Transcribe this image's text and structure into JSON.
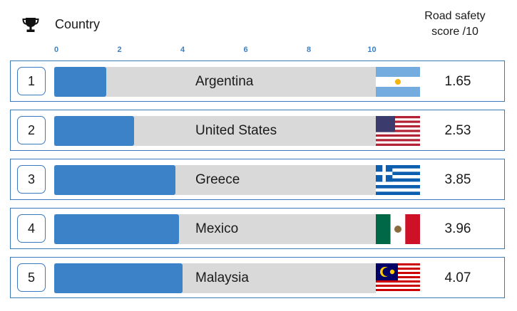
{
  "header": {
    "country_label": "Country",
    "score_label_line1": "Road safety",
    "score_label_line2": "score /10",
    "trophy_icon": "trophy-icon"
  },
  "colors": {
    "bar": "#3c82c8",
    "track": "#d9d9d9",
    "border": "#3b79bf",
    "tick": "#3d7fc1"
  },
  "chart_data": {
    "type": "bar",
    "orientation": "horizontal",
    "title": "",
    "xlabel": "",
    "ylabel": "Country",
    "xlim": [
      0,
      10
    ],
    "ticks": [
      "0",
      "2",
      "4",
      "6",
      "8",
      "10"
    ],
    "categories": [
      "Argentina",
      "United States",
      "Greece",
      "Mexico",
      "Malaysia"
    ],
    "values": [
      1.65,
      2.53,
      3.85,
      3.96,
      4.07
    ],
    "value_labels": [
      "1.65",
      "2.53",
      "3.85",
      "3.96",
      "4.07"
    ],
    "ranks": [
      "1",
      "2",
      "3",
      "4",
      "5"
    ],
    "flag_icons": [
      "argentina-flag-icon",
      "united-states-flag-icon",
      "greece-flag-icon",
      "mexico-flag-icon",
      "malaysia-flag-icon"
    ]
  }
}
